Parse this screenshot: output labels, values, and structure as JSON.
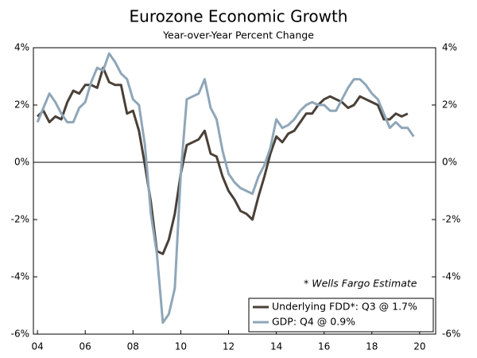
{
  "chart_data": {
    "type": "line",
    "title": "Eurozone Economic Growth",
    "subtitle": "Year-over-Year Percent Change",
    "annotation": "* Wells Fargo Estimate",
    "x": [
      2004,
      2004.25,
      2004.5,
      2004.75,
      2005,
      2005.25,
      2005.5,
      2005.75,
      2006,
      2006.25,
      2006.5,
      2006.75,
      2007,
      2007.25,
      2007.5,
      2007.75,
      2008,
      2008.25,
      2008.5,
      2008.75,
      2009,
      2009.25,
      2009.5,
      2009.75,
      2010,
      2010.25,
      2010.5,
      2010.75,
      2011,
      2011.25,
      2011.5,
      2011.75,
      2012,
      2012.25,
      2012.5,
      2012.75,
      2013,
      2013.25,
      2013.5,
      2013.75,
      2014,
      2014.25,
      2014.5,
      2014.75,
      2015,
      2015.25,
      2015.5,
      2015.75,
      2016,
      2016.25,
      2016.5,
      2016.75,
      2017,
      2017.25,
      2017.5,
      2017.75,
      2018,
      2018.25,
      2018.5,
      2018.75,
      2019,
      2019.25,
      2019.5,
      2019.75
    ],
    "series": [
      {
        "name": "Underlying FDD*: Q3 @ 1.7%",
        "color": "#4a4037",
        "values": [
          1.6,
          1.8,
          1.4,
          1.6,
          1.5,
          2.1,
          2.5,
          2.4,
          2.7,
          2.7,
          2.6,
          3.3,
          2.8,
          2.7,
          2.7,
          1.7,
          1.8,
          1.1,
          -0.1,
          -1.4,
          -3.1,
          -3.2,
          -2.7,
          -1.8,
          -0.4,
          0.6,
          0.7,
          0.8,
          1.1,
          0.3,
          0.2,
          -0.5,
          -1.0,
          -1.3,
          -1.7,
          -1.8,
          -2.0,
          -1.2,
          -0.5,
          0.3,
          0.9,
          0.7,
          1.0,
          1.1,
          1.4,
          1.7,
          1.7,
          2.0,
          2.2,
          2.3,
          2.2,
          2.1,
          1.9,
          2.0,
          2.3,
          2.2,
          2.1,
          2.0,
          1.5,
          1.5,
          1.7,
          1.6,
          1.7,
          null
        ]
      },
      {
        "name": "GDP: Q4 @ 0.9%",
        "color": "#8fa6b8",
        "values": [
          1.4,
          1.9,
          2.4,
          2.1,
          1.7,
          1.4,
          1.4,
          1.9,
          2.1,
          2.8,
          3.3,
          3.2,
          3.8,
          3.5,
          3.1,
          2.9,
          2.2,
          2.0,
          0.6,
          -1.8,
          -3.2,
          -5.6,
          -5.3,
          -4.4,
          -0.4,
          2.2,
          2.3,
          2.4,
          2.9,
          1.9,
          1.5,
          0.4,
          -0.4,
          -0.7,
          -0.9,
          -1.0,
          -1.1,
          -0.5,
          -0.1,
          0.5,
          1.5,
          1.2,
          1.3,
          1.5,
          1.8,
          2.0,
          2.1,
          2.0,
          2.0,
          1.8,
          1.8,
          2.2,
          2.6,
          2.9,
          2.9,
          2.7,
          2.4,
          2.2,
          1.7,
          1.2,
          1.4,
          1.2,
          1.2,
          0.9
        ]
      }
    ],
    "xlim": [
      2003.83,
      2020.67
    ],
    "xticks": [
      {
        "value": 2004,
        "label": "04"
      },
      {
        "value": 2006,
        "label": "06"
      },
      {
        "value": 2008,
        "label": "08"
      },
      {
        "value": 2010,
        "label": "10"
      },
      {
        "value": 2012,
        "label": "12"
      },
      {
        "value": 2014,
        "label": "14"
      },
      {
        "value": 2016,
        "label": "16"
      },
      {
        "value": 2018,
        "label": "18"
      },
      {
        "value": 2020,
        "label": "20"
      }
    ],
    "ylim": [
      -6,
      4
    ],
    "yticks": [
      {
        "value": -6,
        "label": "-6%"
      },
      {
        "value": -4,
        "label": "-4%"
      },
      {
        "value": -2,
        "label": "-2%"
      },
      {
        "value": 0,
        "label": "0%"
      },
      {
        "value": 2,
        "label": "2%"
      },
      {
        "value": 4,
        "label": "4%"
      }
    ],
    "y2lim": [
      -6,
      4
    ],
    "y2ticks": [
      {
        "value": -6,
        "label": "-6%"
      },
      {
        "value": -4,
        "label": "-4%"
      },
      {
        "value": -2,
        "label": "-2%"
      },
      {
        "value": 0,
        "label": "0%"
      },
      {
        "value": 2,
        "label": "2%"
      },
      {
        "value": 4,
        "label": "4%"
      }
    ],
    "grid": false,
    "legend": "lower right"
  }
}
